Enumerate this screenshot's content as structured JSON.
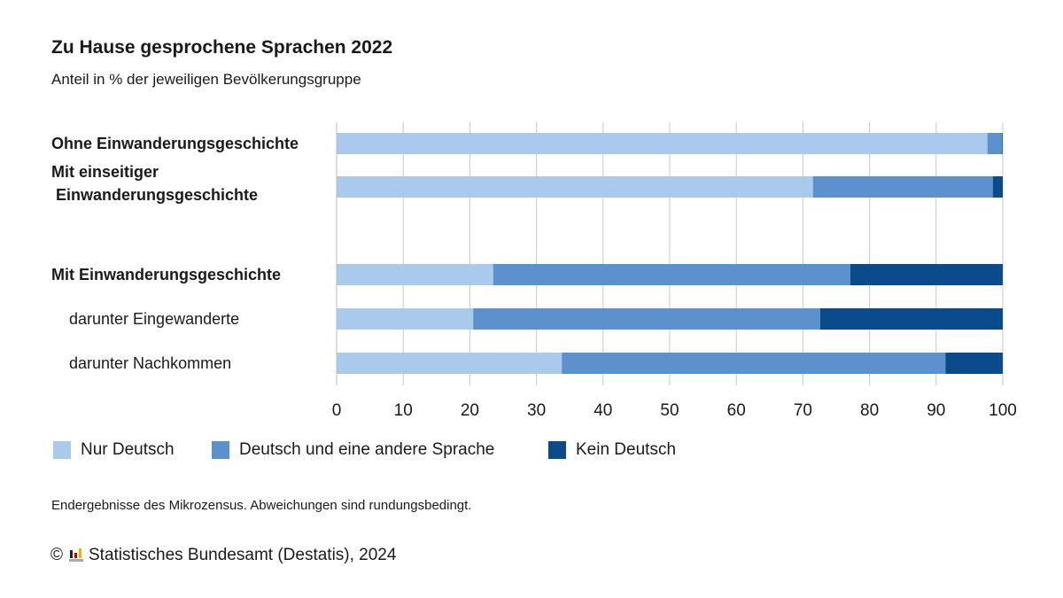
{
  "colors": {
    "nur_deutsch": "#a9caed",
    "deutsch_und_andere": "#5b91cd",
    "kein_deutsch": "#0b4a8b",
    "grid": "#c8c8c8"
  },
  "chart_data": {
    "type": "bar",
    "orientation": "horizontal-stacked",
    "title": "Zu Hause gesprochene Sprachen 2022",
    "subtitle": "Anteil in % der jeweiligen Bevölkerungsgruppe",
    "categories": [
      "Ohne Einwanderungsgeschichte",
      "Mit einseitiger\n Einwanderungsgeschichte",
      "Mit Einwanderungsgeschichte",
      "darunter Eingewanderte",
      "darunter Nachkommen"
    ],
    "category_bold": [
      true,
      true,
      true,
      false,
      false
    ],
    "series": [
      {
        "name": "Nur Deutsch",
        "values": [
          97.7,
          71.5,
          23.5,
          20.5,
          33.8
        ]
      },
      {
        "name": "Deutsch und eine andere Sprache",
        "values": [
          2.2,
          27.0,
          53.6,
          52.1,
          57.6
        ]
      },
      {
        "name": "Kein Deutsch",
        "values": [
          0.1,
          1.5,
          22.9,
          27.4,
          8.6
        ]
      }
    ],
    "xlim": [
      0,
      100
    ],
    "xticks": [
      "0",
      "10",
      "20",
      "30",
      "40",
      "50",
      "60",
      "70",
      "80",
      "90",
      "100"
    ],
    "grid": true,
    "legend": "bottom"
  },
  "note": "Endergebnisse des Mikrozensus. Abweichungen sind rundungsbedingt.",
  "source": {
    "copyright": "©",
    "text": "Statistisches Bundesamt (Destatis), 2024"
  }
}
